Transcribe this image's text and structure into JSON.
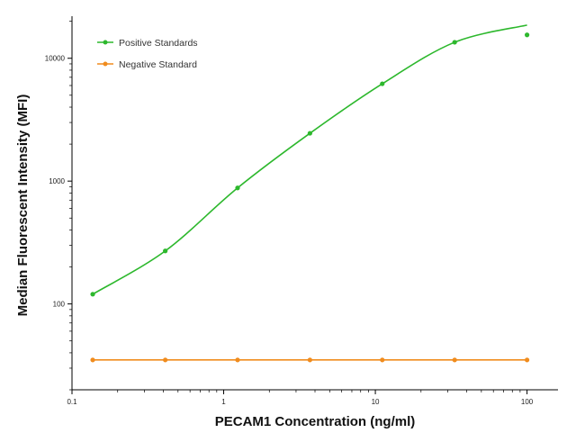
{
  "chart_data": {
    "type": "scatter",
    "x_scale": "log",
    "y_scale": "log",
    "xlabel": "PECAM1 Concentration (ng/ml)",
    "ylabel": "Median  Fluorescent Intensity  (MFI)",
    "xlim": [
      0.1,
      160
    ],
    "ylim": [
      20,
      22000
    ],
    "x_ticks": [
      {
        "value": 0.1,
        "label": "0.1"
      },
      {
        "value": 1,
        "label": "1"
      },
      {
        "value": 10,
        "label": "10"
      },
      {
        "value": 100,
        "label": "100"
      }
    ],
    "y_ticks": [
      {
        "value": 100,
        "label": "100"
      },
      {
        "value": 1000,
        "label": "1000"
      },
      {
        "value": 10000,
        "label": "10000"
      }
    ],
    "grid": false,
    "legend_position": "top-left",
    "series": [
      {
        "name": "Positive Standards",
        "color": "#2db82d",
        "x": [
          0.137,
          0.412,
          1.235,
          3.704,
          11.11,
          33.33,
          100
        ],
        "y": [
          120,
          270,
          880,
          2450,
          6200,
          13500,
          15500
        ],
        "fit_curve": true
      },
      {
        "name": "Negative Standard",
        "color": "#f08c1e",
        "x": [
          0.137,
          0.412,
          1.235,
          3.704,
          11.11,
          33.33,
          100
        ],
        "y": [
          35,
          35,
          35,
          35,
          35,
          35,
          35
        ],
        "fit_curve": false
      }
    ]
  }
}
